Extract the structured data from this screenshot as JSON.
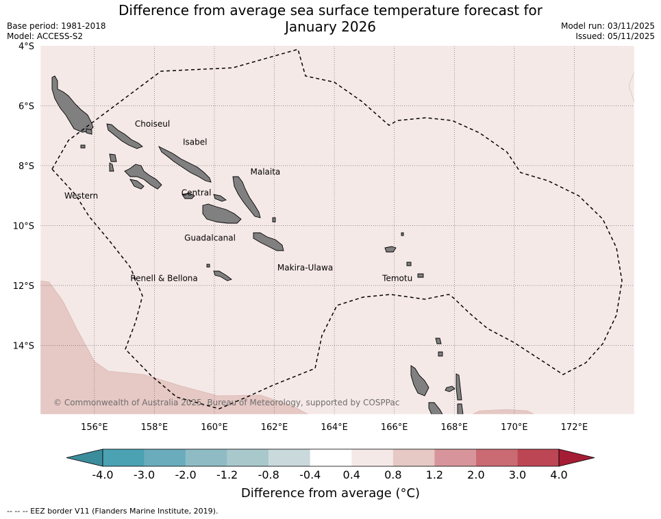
{
  "header": {
    "title_line1": "Difference from average sea surface temperature forecast for",
    "title_line2": "January 2026",
    "base_period": "Base period: 1981-2018",
    "model": "Model: ACCESS-S2",
    "model_run": "Model run: 03/11/2025",
    "issued": "Issued: 05/11/2025"
  },
  "map": {
    "lon_range": [
      154.2,
      174.0
    ],
    "lat_range": [
      -16.3,
      -4.0
    ],
    "lat_ticks": [
      {
        "value": -4,
        "label": "4°S"
      },
      {
        "value": -6,
        "label": "6°S"
      },
      {
        "value": -8,
        "label": "8°S"
      },
      {
        "value": -10,
        "label": "10°S"
      },
      {
        "value": -12,
        "label": "12°S"
      },
      {
        "value": -14,
        "label": "14°S"
      }
    ],
    "lon_ticks": [
      {
        "value": 156,
        "label": "156°E"
      },
      {
        "value": 158,
        "label": "158°E"
      },
      {
        "value": 160,
        "label": "160°E"
      },
      {
        "value": 162,
        "label": "162°E"
      },
      {
        "value": 164,
        "label": "164°E"
      },
      {
        "value": 166,
        "label": "166°E"
      },
      {
        "value": 168,
        "label": "168°E"
      },
      {
        "value": 170,
        "label": "170°E"
      },
      {
        "value": 172,
        "label": "172°E"
      }
    ],
    "province_labels": [
      {
        "name": "Choiseul",
        "lon": 157.35,
        "lat": -6.7
      },
      {
        "name": "Isabel",
        "lon": 158.95,
        "lat": -7.3
      },
      {
        "name": "Malaita",
        "lon": 161.2,
        "lat": -8.3
      },
      {
        "name": "Western",
        "lon": 155.0,
        "lat": -9.1
      },
      {
        "name": "Central",
        "lon": 158.9,
        "lat": -9.0
      },
      {
        "name": "Guadalcanal",
        "lon": 159.0,
        "lat": -10.5
      },
      {
        "name": "Makira-Ulawa",
        "lon": 162.1,
        "lat": -11.5
      },
      {
        "name": "Renell & Bellona",
        "lon": 157.2,
        "lat": -11.85
      },
      {
        "name": "Temotu",
        "lon": 165.6,
        "lat": -11.85
      }
    ],
    "copyright": "© Commonwealth of Australia 2025, Bureau of Meteorology, supported by COSPPac",
    "background_color": "#f5e9e7",
    "warm_color": "#e6c8c4",
    "land_color": "#808080"
  },
  "colorbar": {
    "title": "Difference from average (°C)",
    "ticks": [
      "-4.0",
      "-3.0",
      "-2.0",
      "-1.2",
      "-0.8",
      "-0.4",
      "0.4",
      "0.8",
      "1.2",
      "2.0",
      "3.0",
      "4.0"
    ],
    "colors": [
      "#3c8d9c",
      "#4ba2b2",
      "#6aacbc",
      "#8fbbc4",
      "#a9c8cb",
      "#cad9dc",
      "#ffffff",
      "#f5e9e7",
      "#e6c8c4",
      "#d7959b",
      "#ca6a73",
      "#bc4654",
      "#a51d35"
    ]
  },
  "footer": {
    "eez_note": "--  --  -- EEZ border V11 (Flanders Marine Institute, 2019)."
  }
}
